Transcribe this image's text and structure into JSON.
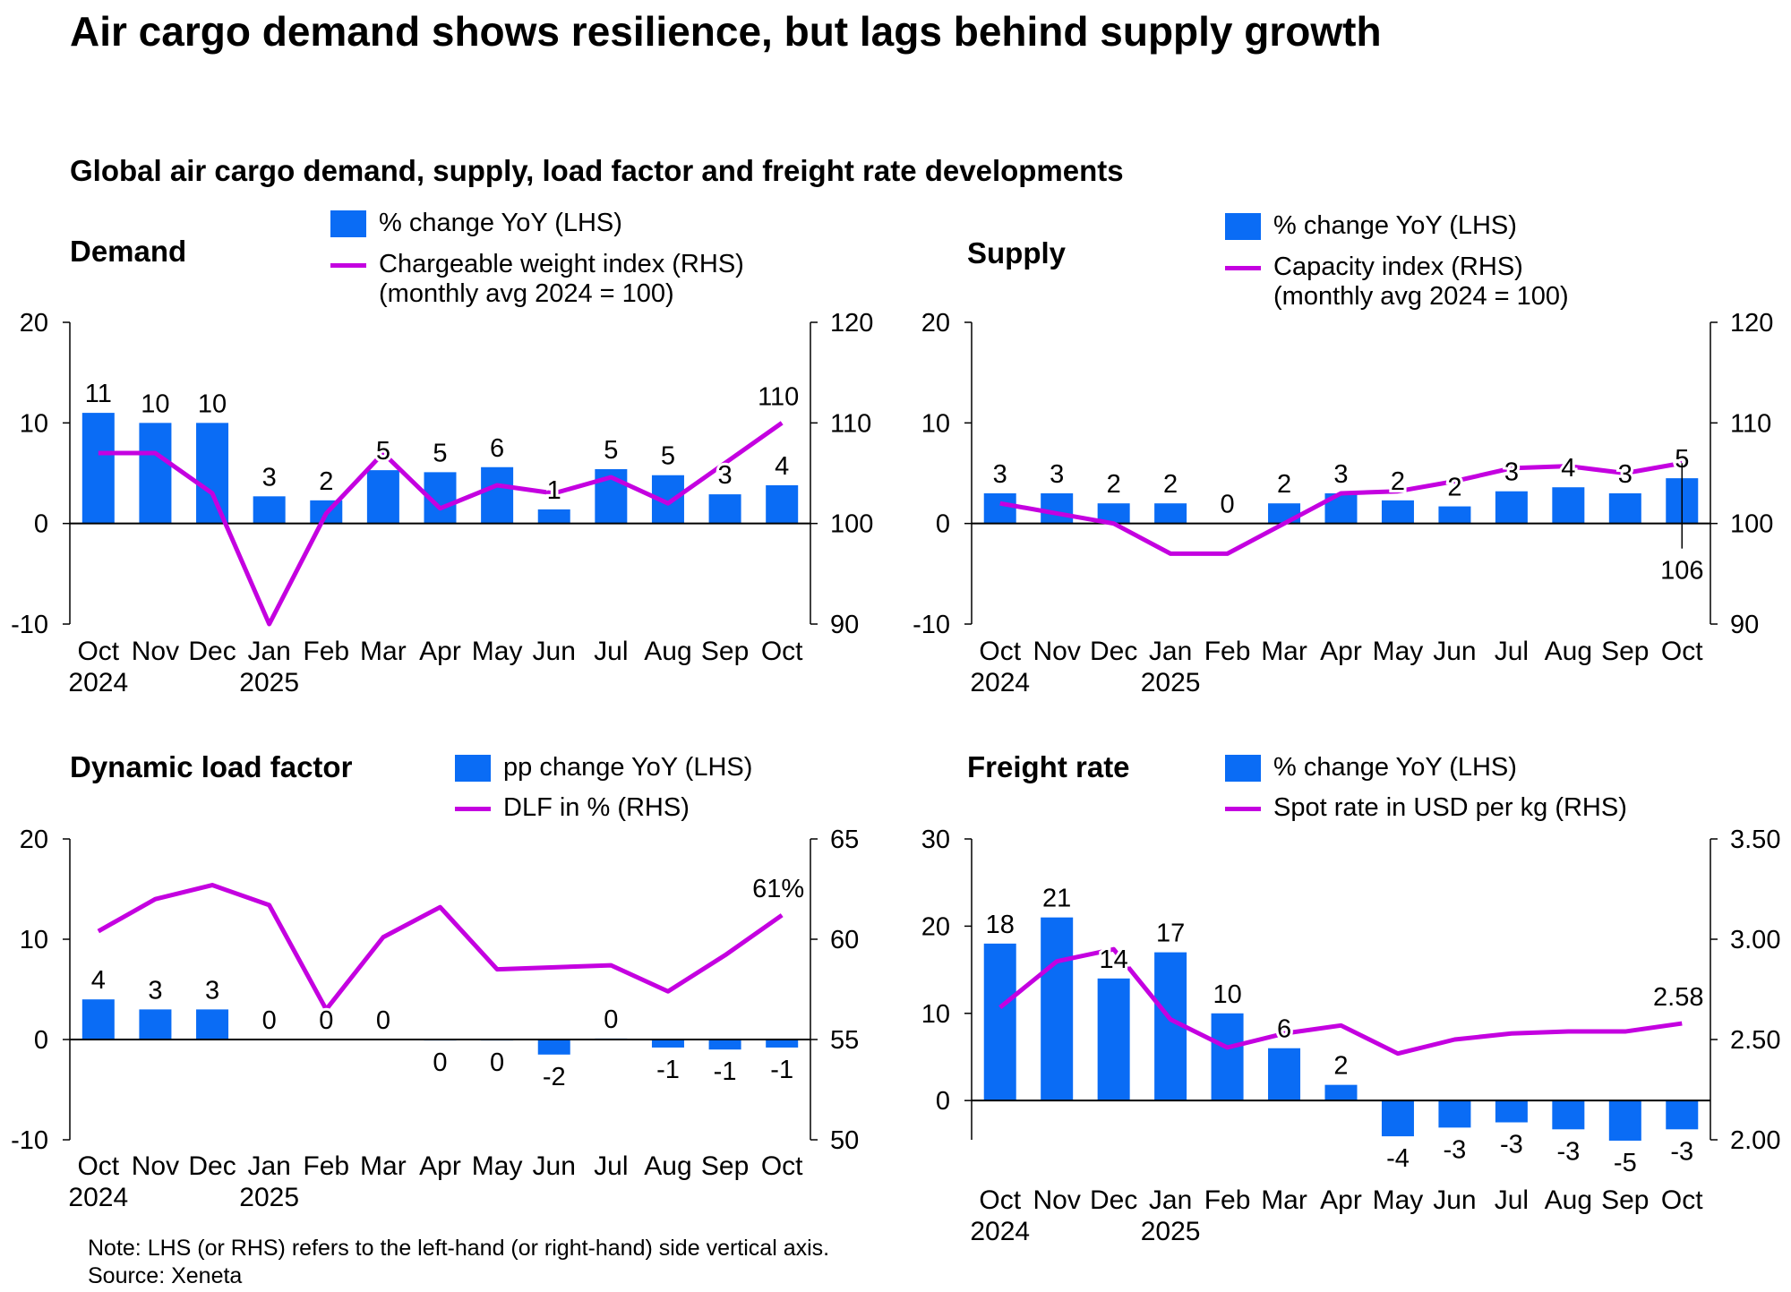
{
  "title": "Air cargo demand shows resilience, but lags behind supply growth",
  "subtitle": "Global air cargo demand, supply, load factor and freight rate developments",
  "note": "Note: LHS (or RHS) refers to the left-hand (or right-hand) side vertical axis.",
  "source": "Source: Xeneta",
  "colors": {
    "bar": "#0a6cf5",
    "line": "#c400e0"
  },
  "chart_data": [
    {
      "type": "bar+line",
      "title": "Demand",
      "categories": [
        "Oct",
        "Nov",
        "Dec",
        "Jan",
        "Feb",
        "Mar",
        "Apr",
        "May",
        "Jun",
        "Jul",
        "Aug",
        "Sep",
        "Oct"
      ],
      "year_labels": [
        "2024",
        "",
        "",
        "2025",
        "",
        "",
        "",
        "",
        "",
        "",
        "",
        "",
        ""
      ],
      "series": [
        {
          "name": "% change YoY (LHS)",
          "type": "bar",
          "axis": "left",
          "values": [
            11,
            10,
            10,
            2.7,
            2.3,
            5.3,
            5.1,
            5.6,
            1.4,
            5.4,
            4.8,
            2.9,
            3.8
          ],
          "labels": [
            "11",
            "10",
            "10",
            "3",
            "2",
            "5",
            "5",
            "6",
            "1",
            "5",
            "5",
            "3",
            "4"
          ]
        },
        {
          "name": "Chargeable weight index (RHS)",
          "name_line2": "(monthly avg 2024 = 100)",
          "type": "line",
          "axis": "right",
          "values": [
            107,
            107,
            103,
            90,
            101,
            107,
            101.5,
            103.8,
            103,
            104.6,
            102,
            106,
            110
          ],
          "end_label": "110"
        }
      ],
      "left_axis": {
        "range": [
          -10,
          20
        ],
        "ticks": [
          "20",
          "10",
          "0",
          "-10"
        ]
      },
      "right_axis": {
        "range": [
          90,
          120
        ],
        "ticks": [
          "120",
          "110",
          "100",
          "90"
        ]
      }
    },
    {
      "type": "bar+line",
      "title": "Supply",
      "categories": [
        "Oct",
        "Nov",
        "Dec",
        "Jan",
        "Feb",
        "Mar",
        "Apr",
        "May",
        "Jun",
        "Jul",
        "Aug",
        "Sep",
        "Oct"
      ],
      "year_labels": [
        "2024",
        "",
        "",
        "2025",
        "",
        "",
        "",
        "",
        "",
        "",
        "",
        "",
        ""
      ],
      "series": [
        {
          "name": "% change YoY (LHS)",
          "type": "bar",
          "axis": "left",
          "values": [
            3,
            3,
            2,
            2,
            0,
            2,
            3,
            2.3,
            1.7,
            3.2,
            3.6,
            3,
            4.5
          ],
          "labels": [
            "3",
            "3",
            "2",
            "2",
            "0",
            "2",
            "3",
            "2",
            "2",
            "3",
            "4",
            "3",
            "5"
          ]
        },
        {
          "name": "Capacity index (RHS)",
          "name_line2": "(monthly avg 2024 = 100)",
          "type": "line",
          "axis": "right",
          "values": [
            102,
            101,
            100,
            97,
            97,
            100,
            103,
            103.2,
            104.2,
            105.5,
            105.7,
            105,
            106
          ],
          "end_label": "106"
        }
      ],
      "left_axis": {
        "range": [
          -10,
          20
        ],
        "ticks": [
          "20",
          "10",
          "0",
          "-10"
        ]
      },
      "right_axis": {
        "range": [
          90,
          120
        ],
        "ticks": [
          "120",
          "110",
          "100",
          "90"
        ]
      }
    },
    {
      "type": "bar+line",
      "title": "Dynamic load factor",
      "categories": [
        "Oct",
        "Nov",
        "Dec",
        "Jan",
        "Feb",
        "Mar",
        "Apr",
        "May",
        "Jun",
        "Jul",
        "Aug",
        "Sep",
        "Oct"
      ],
      "year_labels": [
        "2024",
        "",
        "",
        "2025",
        "",
        "",
        "",
        "",
        "",
        "",
        "",
        "",
        ""
      ],
      "series": [
        {
          "name": "pp change YoY (LHS)",
          "type": "bar",
          "axis": "left",
          "values": [
            4,
            3,
            3,
            0,
            0,
            0,
            -0.1,
            -0.1,
            -1.5,
            0.1,
            -0.8,
            -1,
            -0.8
          ],
          "labels": [
            "4",
            "3",
            "3",
            "0",
            "0",
            "0",
            "0",
            "0",
            "-2",
            "0",
            "-1",
            "-1",
            "-1"
          ]
        },
        {
          "name": "DLF in % (RHS)",
          "type": "line",
          "axis": "right",
          "values": [
            60.4,
            62,
            62.7,
            61.7,
            56.5,
            60.1,
            61.6,
            58.5,
            58.6,
            58.7,
            57.4,
            59.2,
            61.2
          ],
          "end_label": "61%"
        }
      ],
      "left_axis": {
        "range": [
          -10,
          20
        ],
        "ticks": [
          "20",
          "10",
          "0",
          "-10"
        ]
      },
      "right_axis": {
        "range": [
          50,
          65
        ],
        "ticks": [
          "65",
          "60",
          "55",
          "50"
        ]
      }
    },
    {
      "type": "bar+line",
      "title": "Freight rate",
      "categories": [
        "Oct",
        "Nov",
        "Dec",
        "Jan",
        "Feb",
        "Mar",
        "Apr",
        "May",
        "Jun",
        "Jul",
        "Aug",
        "Sep",
        "Oct"
      ],
      "year_labels": [
        "2024",
        "",
        "",
        "2025",
        "",
        "",
        "",
        "",
        "",
        "",
        "",
        "",
        ""
      ],
      "series": [
        {
          "name": "% change YoY (LHS)",
          "type": "bar",
          "axis": "left",
          "values": [
            18,
            21,
            14,
            17,
            10,
            6,
            1.8,
            -4.1,
            -3.1,
            -2.5,
            -3.3,
            -4.6,
            -3.3
          ],
          "labels": [
            "18",
            "21",
            "14",
            "17",
            "10",
            "6",
            "2",
            "-4",
            "-3",
            "-3",
            "-3",
            "-5",
            "-3"
          ]
        },
        {
          "name": "Spot rate in USD per kg (RHS)",
          "type": "line",
          "axis": "right",
          "values": [
            2.66,
            2.89,
            2.95,
            2.6,
            2.46,
            2.53,
            2.57,
            2.43,
            2.5,
            2.53,
            2.54,
            2.54,
            2.58
          ],
          "end_label": "2.58"
        }
      ],
      "left_axis": {
        "range": [
          -4.5,
          30
        ],
        "ticks": [
          "30",
          "20",
          "10",
          "0"
        ]
      },
      "right_axis": {
        "range": [
          2.0,
          3.5
        ],
        "ticks": [
          "3.50",
          "3.00",
          "2.50",
          "2.00"
        ]
      }
    }
  ]
}
